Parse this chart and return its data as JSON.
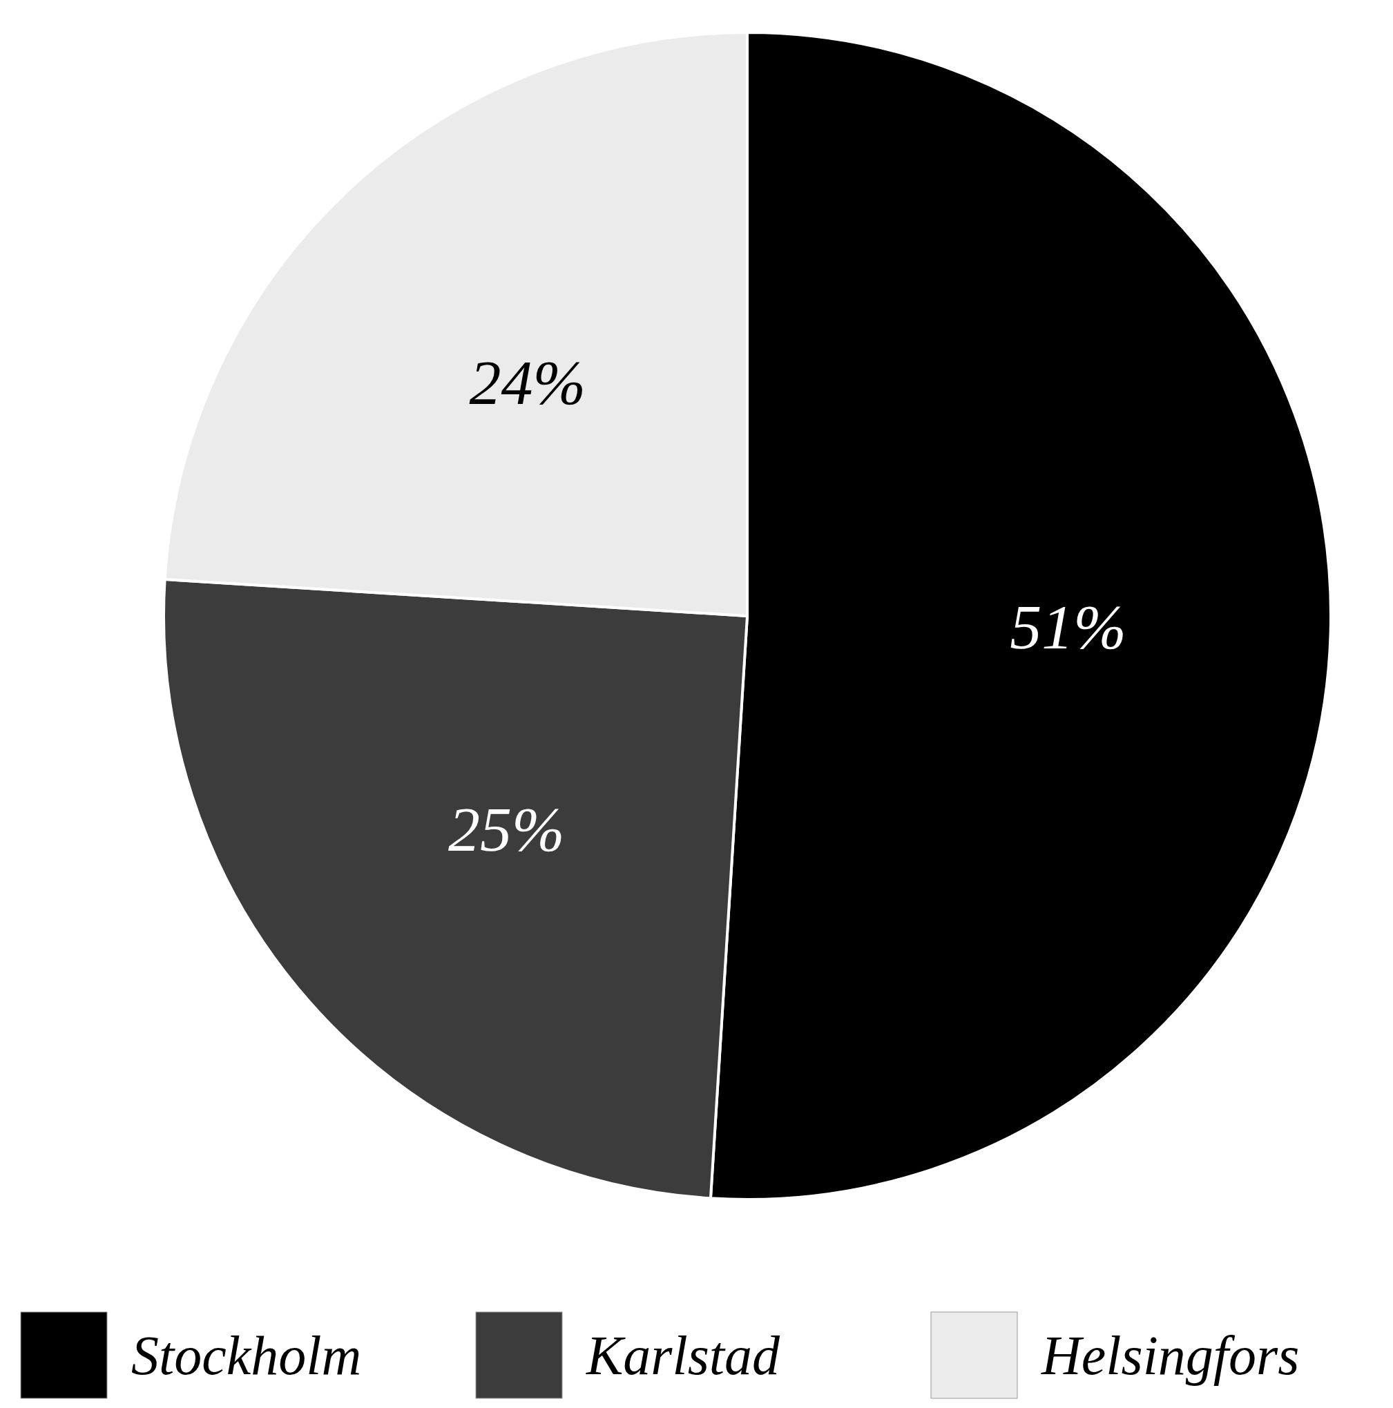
{
  "chart_data": {
    "type": "pie",
    "categories": [
      "Stockholm",
      "Karlstad",
      "Helsingfors"
    ],
    "values": [
      51,
      25,
      24
    ],
    "colors": [
      "#000000",
      "#3c3c3c",
      "#ebebeb"
    ],
    "value_labels": [
      "51%",
      "25%",
      "24%"
    ],
    "legend": "bottom"
  }
}
